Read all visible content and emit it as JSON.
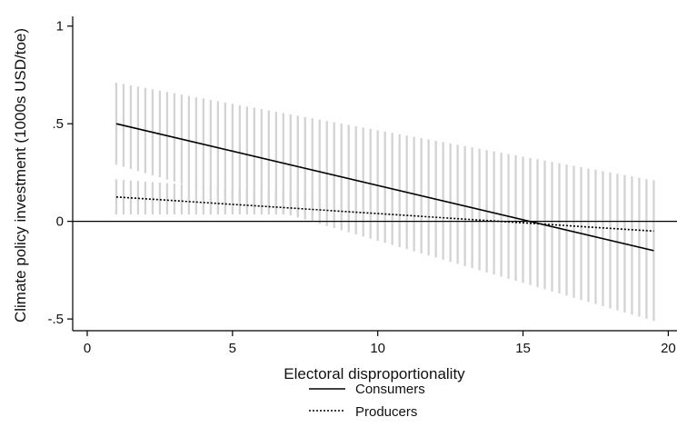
{
  "chart_data": {
    "type": "line",
    "xlabel": "Electoral disproportionality",
    "ylabel": "Climate policy investment (1000s USD/toe)",
    "xlim": [
      -0.5,
      20.3
    ],
    "ylim": [
      -0.56,
      1.05
    ],
    "xticks": [
      0,
      5,
      10,
      15,
      20
    ],
    "xtick_labels": [
      "0",
      "5",
      "10",
      "15",
      "20"
    ],
    "yticks": [
      -0.5,
      0,
      0.5,
      1
    ],
    "ytick_labels": [
      "-.5",
      "0",
      ".5",
      "1"
    ],
    "reference_line_y": 0,
    "grid": false,
    "legend_position": "bottom-center",
    "series": [
      {
        "name": "Consumers",
        "line_style": "solid",
        "x": [
          1,
          19.5
        ],
        "y": [
          0.5,
          -0.15
        ],
        "ci_band": {
          "x": [
            1,
            19.5
          ],
          "lower": [
            0.29,
            -0.51
          ],
          "upper": [
            0.71,
            0.21
          ]
        }
      },
      {
        "name": "Producers",
        "line_style": "dotted",
        "x": [
          1,
          19.5
        ],
        "y": [
          0.125,
          -0.05
        ],
        "ci_band": {
          "x": [
            1,
            7.75
          ],
          "lower": [
            0.035,
            0.035
          ],
          "upper": [
            0.215,
            0.14
          ]
        }
      }
    ],
    "colors": {
      "line": "#000000",
      "ci_band": "#d3d3d3",
      "axis": "#000000"
    }
  }
}
